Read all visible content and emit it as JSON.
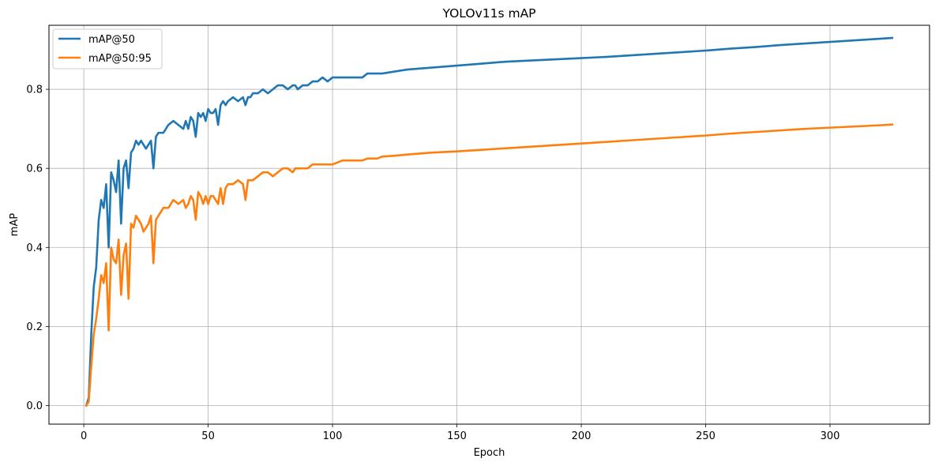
{
  "chart_data": {
    "type": "line",
    "title": "YOLOv11s mAP",
    "xlabel": "Epoch",
    "ylabel": "mAP",
    "xlim": [
      -14,
      340
    ],
    "ylim": [
      -0.047,
      0.962
    ],
    "x_ticks": [
      0,
      50,
      100,
      150,
      200,
      250,
      300
    ],
    "y_ticks": [
      0.0,
      0.2,
      0.4,
      0.6,
      0.8
    ],
    "grid": true,
    "legend_position": "top-left",
    "series": [
      {
        "name": "mAP@50",
        "color": "#1f77b4",
        "x": [
          1,
          2,
          3,
          4,
          5,
          6,
          7,
          8,
          9,
          10,
          11,
          12,
          13,
          14,
          15,
          16,
          17,
          18,
          19,
          20,
          21,
          22,
          23,
          24,
          25,
          26,
          27,
          28,
          29,
          30,
          32,
          34,
          36,
          38,
          40,
          41,
          42,
          43,
          44,
          45,
          46,
          47,
          48,
          49,
          50,
          51,
          52,
          53,
          54,
          55,
          56,
          57,
          58,
          60,
          62,
          64,
          65,
          66,
          67,
          68,
          70,
          72,
          74,
          76,
          78,
          80,
          82,
          84,
          85,
          86,
          88,
          90,
          92,
          94,
          96,
          98,
          100,
          102,
          104,
          106,
          108,
          110,
          112,
          114,
          116,
          118,
          120,
          125,
          130,
          140,
          150,
          160,
          170,
          180,
          190,
          200,
          210,
          220,
          230,
          240,
          250,
          260,
          270,
          280,
          290,
          300,
          310,
          320,
          325
        ],
        "y": [
          0.0,
          0.02,
          0.18,
          0.3,
          0.35,
          0.47,
          0.52,
          0.5,
          0.56,
          0.4,
          0.59,
          0.57,
          0.54,
          0.62,
          0.46,
          0.6,
          0.62,
          0.55,
          0.64,
          0.65,
          0.67,
          0.66,
          0.67,
          0.66,
          0.65,
          0.66,
          0.67,
          0.6,
          0.68,
          0.69,
          0.69,
          0.71,
          0.72,
          0.71,
          0.7,
          0.72,
          0.7,
          0.73,
          0.72,
          0.68,
          0.74,
          0.73,
          0.74,
          0.72,
          0.75,
          0.74,
          0.74,
          0.75,
          0.71,
          0.76,
          0.77,
          0.76,
          0.77,
          0.78,
          0.77,
          0.78,
          0.76,
          0.78,
          0.78,
          0.79,
          0.79,
          0.8,
          0.79,
          0.8,
          0.81,
          0.81,
          0.8,
          0.81,
          0.81,
          0.8,
          0.81,
          0.81,
          0.82,
          0.82,
          0.83,
          0.82,
          0.83,
          0.83,
          0.83,
          0.83,
          0.83,
          0.83,
          0.83,
          0.84,
          0.84,
          0.84,
          0.84,
          0.845,
          0.85,
          0.855,
          0.86,
          0.865,
          0.87,
          0.873,
          0.876,
          0.879,
          0.882,
          0.886,
          0.89,
          0.894,
          0.898,
          0.903,
          0.907,
          0.912,
          0.916,
          0.92,
          0.924,
          0.928,
          0.93
        ]
      },
      {
        "name": "mAP@50:95",
        "color": "#ff7f0e",
        "x": [
          1,
          2,
          3,
          4,
          5,
          6,
          7,
          8,
          9,
          10,
          11,
          12,
          13,
          14,
          15,
          16,
          17,
          18,
          19,
          20,
          21,
          22,
          23,
          24,
          25,
          26,
          27,
          28,
          29,
          30,
          32,
          34,
          36,
          38,
          40,
          41,
          42,
          43,
          44,
          45,
          46,
          47,
          48,
          49,
          50,
          51,
          52,
          53,
          54,
          55,
          56,
          57,
          58,
          60,
          62,
          64,
          65,
          66,
          67,
          68,
          70,
          72,
          74,
          76,
          78,
          80,
          82,
          84,
          85,
          86,
          88,
          90,
          92,
          94,
          96,
          98,
          100,
          102,
          104,
          106,
          108,
          110,
          112,
          114,
          116,
          118,
          120,
          125,
          130,
          140,
          150,
          160,
          170,
          180,
          190,
          200,
          210,
          220,
          230,
          240,
          250,
          260,
          270,
          280,
          290,
          300,
          310,
          320,
          325
        ],
        "y": [
          0.0,
          0.01,
          0.1,
          0.18,
          0.22,
          0.27,
          0.33,
          0.31,
          0.36,
          0.19,
          0.4,
          0.37,
          0.36,
          0.42,
          0.28,
          0.38,
          0.41,
          0.27,
          0.46,
          0.45,
          0.48,
          0.47,
          0.46,
          0.44,
          0.45,
          0.46,
          0.48,
          0.36,
          0.47,
          0.48,
          0.5,
          0.5,
          0.52,
          0.51,
          0.52,
          0.5,
          0.51,
          0.53,
          0.52,
          0.47,
          0.54,
          0.53,
          0.51,
          0.53,
          0.51,
          0.53,
          0.53,
          0.52,
          0.51,
          0.55,
          0.51,
          0.55,
          0.56,
          0.56,
          0.57,
          0.56,
          0.52,
          0.57,
          0.57,
          0.57,
          0.58,
          0.59,
          0.59,
          0.58,
          0.59,
          0.6,
          0.6,
          0.59,
          0.6,
          0.6,
          0.6,
          0.6,
          0.61,
          0.61,
          0.61,
          0.61,
          0.61,
          0.615,
          0.62,
          0.62,
          0.62,
          0.62,
          0.62,
          0.625,
          0.625,
          0.625,
          0.63,
          0.632,
          0.635,
          0.64,
          0.643,
          0.647,
          0.651,
          0.655,
          0.659,
          0.663,
          0.667,
          0.671,
          0.675,
          0.679,
          0.683,
          0.688,
          0.692,
          0.696,
          0.7,
          0.703,
          0.706,
          0.709,
          0.711
        ]
      }
    ]
  }
}
